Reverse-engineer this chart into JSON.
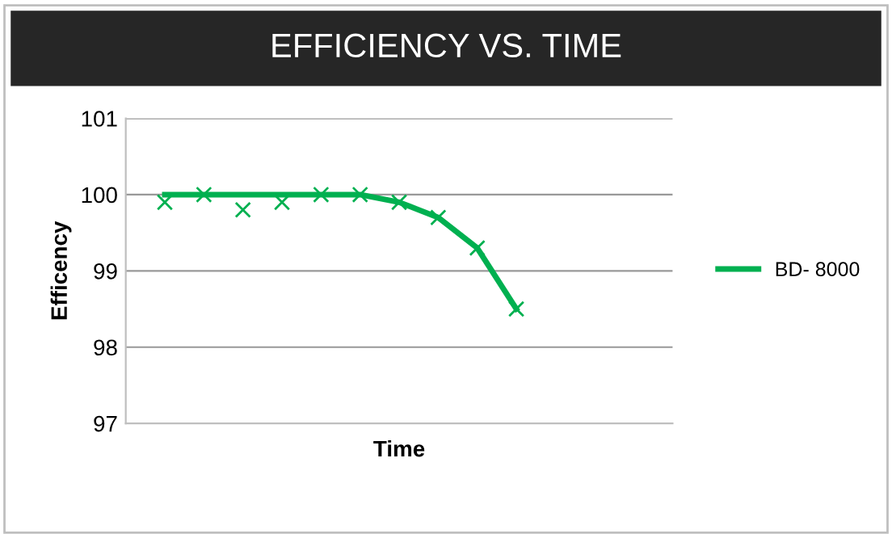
{
  "chart_data": {
    "type": "line",
    "title": "EFFICIENCY VS. TIME",
    "xlabel": "Time",
    "ylabel": "Efficency",
    "categories": [
      null,
      null,
      null,
      null,
      null,
      null,
      null,
      null,
      null,
      null,
      null,
      null,
      null
    ],
    "series": [
      {
        "name": "BD- 8000",
        "color": "#00b050",
        "marker": "none",
        "values": [
          100,
          100,
          100,
          100,
          100,
          100,
          99.9,
          99.7,
          99.3,
          98.5,
          null,
          null,
          null
        ]
      },
      {
        "type": "scatter",
        "color": "#00b050",
        "marker": "cross",
        "values": [
          99.9,
          100,
          99.8,
          99.9,
          100,
          100,
          99.9,
          99.7,
          99.3,
          98.5,
          null,
          null,
          null
        ]
      }
    ],
    "ylim": [
      97,
      101
    ],
    "yticks": [
      97,
      98,
      99,
      100,
      101
    ],
    "grid": "y",
    "legend": "right"
  }
}
